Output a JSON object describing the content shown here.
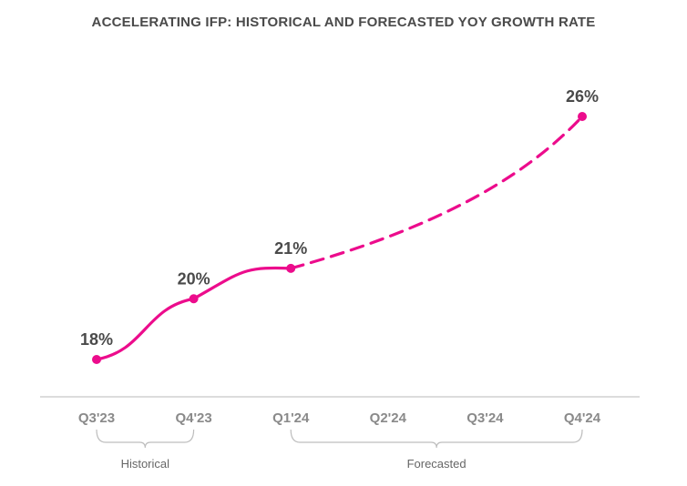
{
  "chart_data": {
    "type": "line",
    "title": "ACCELERATING IFP: HISTORICAL AND FORECASTED YOY GROWTH RATE",
    "categories": [
      "Q3'23",
      "Q4'23",
      "Q1'24",
      "Q2'24",
      "Q3'24",
      "Q4'24"
    ],
    "series": [
      {
        "name": "YoY growth rate",
        "color": "#ec0c8c",
        "points": [
          {
            "category": "Q3'23",
            "value": 18,
            "label": "18%",
            "style": "actual"
          },
          {
            "category": "Q4'23",
            "value": 20,
            "label": "20%",
            "style": "actual"
          },
          {
            "category": "Q1'24",
            "value": 21,
            "label": "21%",
            "style": "actual"
          },
          {
            "category": "Q4'24",
            "value": 26,
            "label": "26%",
            "style": "forecast"
          }
        ]
      }
    ],
    "groups": [
      {
        "label": "Historical",
        "from": "Q3'23",
        "to": "Q4'23"
      },
      {
        "label": "Forecasted",
        "from": "Q1'24",
        "to": "Q4'24"
      }
    ],
    "ylim": [
      14,
      27
    ],
    "grid": false
  }
}
